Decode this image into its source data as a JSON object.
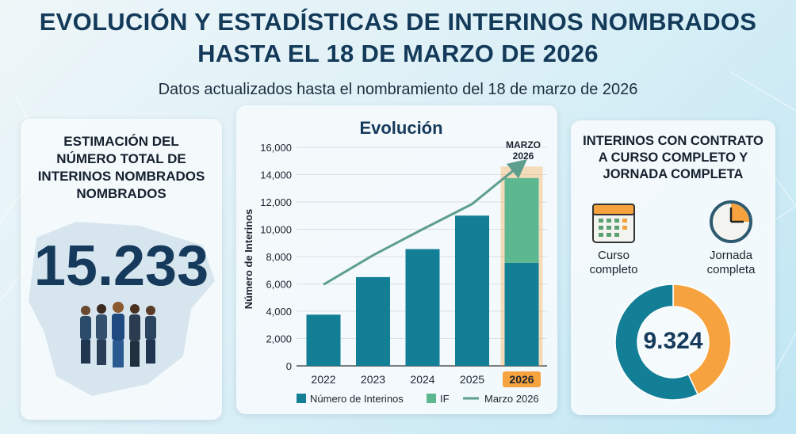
{
  "header": {
    "title_line1": "EVOLUCIÓN Y ESTADÍSTICAS DE INTERINOS NOMBRADOS",
    "title_line2": "HASTA EL 18 DE MARZO DE 2026",
    "subtitle": "Datos actualizados hasta el nombramiento del 18 de marzo de 2026"
  },
  "left_panel": {
    "heading_lines": [
      "ESTIMACIÓN DEL",
      "NÚMERO TOTAL DE",
      "INTERINOS NOMBRADOS",
      "NOMBRADOS"
    ],
    "total": "15.233",
    "icons": [
      "spain-map-icon",
      "people-group-icon"
    ]
  },
  "right_panel": {
    "heading_lines": [
      "INTERINOS CON CONTRATO",
      "A CURSO COMPLETO Y",
      "JORNADA COMPLETA"
    ],
    "item1": {
      "icon": "calendar-icon",
      "label_lines": [
        "Curso",
        "completo"
      ]
    },
    "item2": {
      "icon": "clock-icon",
      "label_lines": [
        "Jornada",
        "completa"
      ]
    },
    "donut_value": "9.324"
  },
  "colors": {
    "teal": "#137f96",
    "green": "#5db891",
    "orange": "#f6a23e",
    "line": "#5d9e8f",
    "navy": "#153a5c"
  },
  "chart_data": [
    {
      "type": "bar",
      "title": "Evolución",
      "ylabel": "Número de Interinos",
      "xlabel": "",
      "ylim": [
        0,
        16000
      ],
      "yticks": [
        "0",
        "2,000",
        "4,000",
        "6,000",
        "8,000",
        "10,000",
        "12,000",
        "14,000",
        "16,000"
      ],
      "categories": [
        "2022",
        "2023",
        "2024",
        "2025",
        "2026"
      ],
      "highlight_category": "2026",
      "annotation": [
        "MARZO",
        "2026"
      ],
      "grid": true,
      "legend_position": "bottom",
      "series": [
        {
          "name": "Número de Interinos",
          "type": "bar",
          "values": [
            3750,
            6500,
            8550,
            11000,
            7550
          ]
        },
        {
          "name": "IF",
          "type": "bar-stacked",
          "values": [
            0,
            0,
            0,
            0,
            6200
          ]
        },
        {
          "name": "Marzo 2026",
          "type": "line",
          "values": [
            5950,
            8100,
            10000,
            11850,
            14800
          ]
        }
      ]
    },
    {
      "type": "pie",
      "style": "donut",
      "center_label": "9.324",
      "values": [
        57,
        43
      ],
      "slice_colors": [
        "#137f96",
        "#f6a23e"
      ]
    }
  ]
}
